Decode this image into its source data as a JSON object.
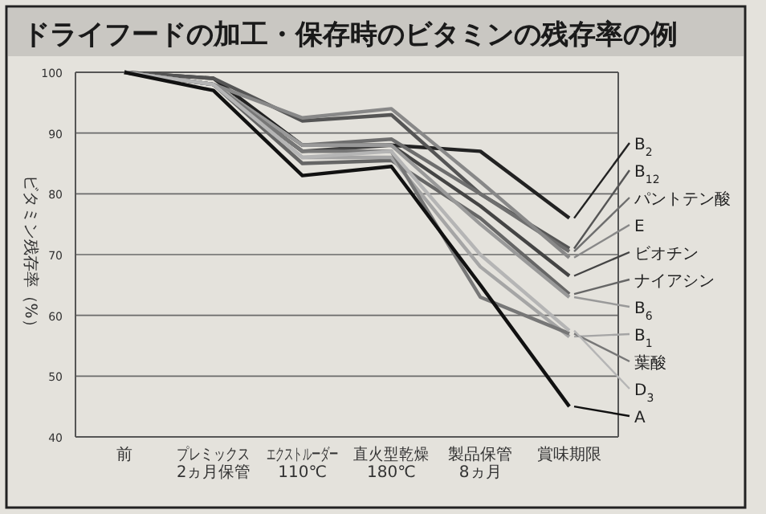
{
  "chart_data": {
    "type": "line",
    "title": "ドライフードの加工・保存時のビタミンの残存率の例",
    "ylabel": "ビタミン残存率（%）",
    "categories": [
      "前",
      "プレミックス\n2ヵ月保管",
      "エクストルーダー\n110℃",
      "直火型乾燥\n180℃",
      "製品保管\n8ヵ月",
      "賞味期限"
    ],
    "ylim": [
      40,
      100
    ],
    "yticks": [
      40,
      50,
      60,
      70,
      80,
      90,
      100
    ],
    "grid": "y",
    "legend": "right",
    "marker": "none",
    "line_style": "solid",
    "series": [
      {
        "name": "B$_{2}$",
        "color": "#222222",
        "values": [
          100,
          99,
          88,
          88,
          87,
          76
        ]
      },
      {
        "name": "B$_{12}$",
        "color": "#555555",
        "values": [
          100,
          99,
          92,
          93,
          80,
          71
        ]
      },
      {
        "name": "パントテン酸",
        "color": "#6e6e6e",
        "values": [
          100,
          98,
          88,
          89,
          80,
          70.5
        ]
      },
      {
        "name": "E",
        "color": "#888888",
        "values": [
          100,
          98,
          92.5,
          94,
          82,
          69.5
        ]
      },
      {
        "name": "ビオチン",
        "color": "#444444",
        "values": [
          100,
          98,
          87,
          88,
          78,
          66.5
        ]
      },
      {
        "name": "ナイアシン",
        "color": "#666666",
        "values": [
          100,
          98,
          85,
          85.5,
          76,
          63.5
        ]
      },
      {
        "name": "B$_{6}$",
        "color": "#999999",
        "values": [
          100,
          98,
          88,
          88,
          75,
          63
        ]
      },
      {
        "name": "B$_{1}$",
        "color": "#a5a5a5",
        "values": [
          100,
          98,
          86,
          86,
          68,
          56.5
        ]
      },
      {
        "name": "葉酸",
        "color": "#777777",
        "values": [
          100,
          98,
          87,
          87,
          63,
          57
        ]
      },
      {
        "name": "D$_{3}$",
        "color": "#b5b5b5",
        "values": [
          100,
          98,
          86,
          87,
          70,
          57.5
        ]
      },
      {
        "name": "A",
        "color": "#111111",
        "values": [
          100,
          97,
          83,
          84.5,
          65,
          45
        ]
      }
    ]
  }
}
